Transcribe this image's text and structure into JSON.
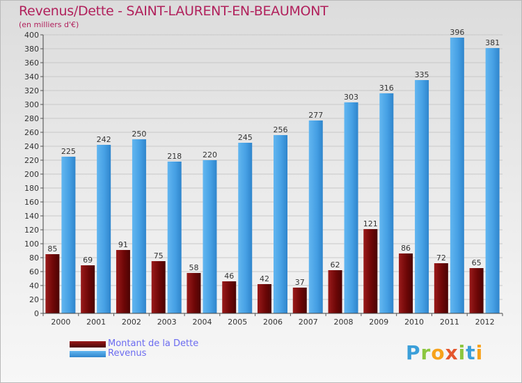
{
  "header": {
    "title": "Revenus/Dette - SAINT-LAURENT-EN-BEAUMONT",
    "subtitle": "(en milliers d'€)"
  },
  "legend": {
    "items": [
      {
        "label": "Montant de la Dette",
        "color": "#7a0a0a"
      },
      {
        "label": "Revenus",
        "color": "#4aa3e6"
      }
    ]
  },
  "logo": {
    "letters": [
      {
        "char": "P",
        "color": "#3b9fd9"
      },
      {
        "char": "r",
        "color": "#8cc63f"
      },
      {
        "char": "o",
        "color": "#f7a21b"
      },
      {
        "char": "x",
        "color": "#e4572e"
      },
      {
        "char": "i",
        "color": "#8cc63f"
      },
      {
        "char": "t",
        "color": "#3b9fd9"
      },
      {
        "char": "i",
        "color": "#f7a21b"
      }
    ]
  },
  "chart_data": {
    "type": "bar",
    "title": "Revenus/Dette - SAINT-LAURENT-EN-BEAUMONT",
    "ylabel": "(en milliers d'€)",
    "ylim": [
      0,
      400
    ],
    "yticks": [
      "0",
      "20",
      "40",
      "60",
      "80",
      "100",
      "120",
      "140",
      "160",
      "180",
      "200",
      "220",
      "240",
      "260",
      "280",
      "300",
      "320",
      "340",
      "360",
      "380",
      "400"
    ],
    "grid": true,
    "legend_position": "bottom-left",
    "categories": [
      "2000",
      "2001",
      "2002",
      "2003",
      "2004",
      "2005",
      "2006",
      "2007",
      "2008",
      "2009",
      "2010",
      "2011",
      "2012"
    ],
    "series": [
      {
        "name": "Montant de la Dette",
        "color": "#7a0a0a",
        "values": [
          85,
          69,
          91,
          75,
          58,
          46,
          42,
          37,
          62,
          121,
          86,
          72,
          65
        ]
      },
      {
        "name": "Revenus",
        "color": "#4aa3e6",
        "values": [
          225,
          242,
          250,
          218,
          220,
          245,
          256,
          277,
          303,
          316,
          335,
          396,
          381
        ]
      }
    ]
  }
}
